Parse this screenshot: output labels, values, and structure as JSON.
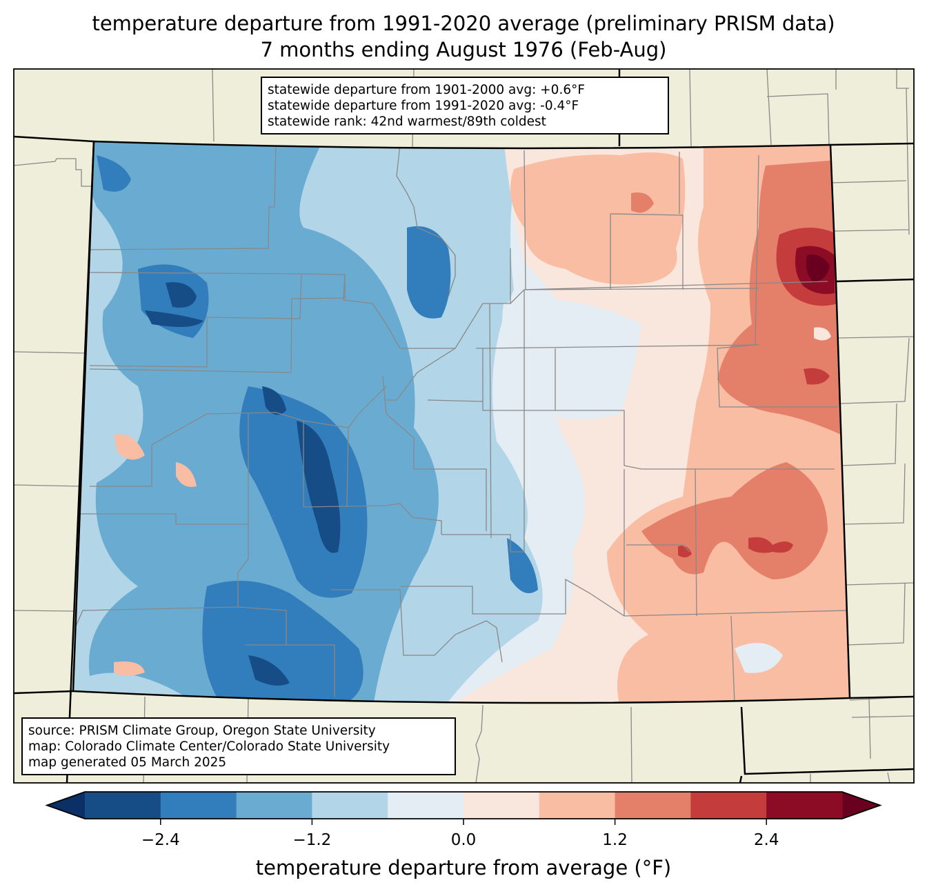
{
  "title": {
    "line1": "temperature departure from 1991-2020 average (preliminary PRISM data)",
    "line2": "7 months ending August 1976 (Feb-Aug)"
  },
  "stats_box": {
    "lines": [
      "statewide departure from 1901-2000 avg: +0.6°F",
      "statewide departure from 1991-2020 avg: -0.4°F",
      "statewide rank: 42nd warmest/89th coldest"
    ]
  },
  "credits_box": {
    "lines": [
      "source: PRISM Climate Group, Oregon State University",
      "map: Colorado Climate Center/Colorado State University",
      "map generated 05 March 2025"
    ]
  },
  "colorbar": {
    "label": "temperature departure from average (°F)",
    "levels": [
      -3.0,
      -2.4,
      -1.8,
      -1.2,
      -0.6,
      0.0,
      0.6,
      1.2,
      1.8,
      2.4,
      3.0
    ],
    "colors": [
      "#164d87",
      "#327dbc",
      "#6aacd1",
      "#b2d5e7",
      "#e5edf4",
      "#f9e7de",
      "#f8bda3",
      "#e4806a",
      "#c43c3c",
      "#8c0c25"
    ],
    "under_color": "#0a3065",
    "over_color": "#6a0020",
    "ticks": [
      {
        "value": -2.4,
        "label": "−2.4"
      },
      {
        "value": -1.2,
        "label": "−1.2"
      },
      {
        "value": 0.0,
        "label": "0.0"
      },
      {
        "value": 1.2,
        "label": "1.2"
      },
      {
        "value": 2.4,
        "label": "2.4"
      }
    ]
  },
  "map": {
    "background_color": "#efeedb",
    "state": "Colorado",
    "period": "Feb-Aug 1976",
    "pattern_summary": "cooler than average across the western mountains, warmer than average across the eastern plains",
    "region_values": [
      {
        "region": "northwest-base",
        "value": -1.5
      },
      {
        "region": "northwest-cold-core",
        "value": -2.1
      },
      {
        "region": "northwest-coldest-core",
        "value": -2.7
      },
      {
        "region": "central-mountains-cold",
        "value": -2.1
      },
      {
        "region": "central-mountains-coldest",
        "value": -2.7
      },
      {
        "region": "san-juans-cold",
        "value": -2.1
      },
      {
        "region": "san-juans-coldest",
        "value": -2.7
      },
      {
        "region": "front-range-near-normal",
        "value": -0.3
      },
      {
        "region": "west-slope-warm-spot",
        "value": 0.9
      },
      {
        "region": "northeast-plains-warm",
        "value": 0.9
      },
      {
        "region": "east-plains-warmer",
        "value": 1.5
      },
      {
        "region": "northeast-hot-core",
        "value": 2.1
      },
      {
        "region": "northeast-hottest-core",
        "value": 2.7
      },
      {
        "region": "southeast-warm",
        "value": 1.5
      },
      {
        "region": "southeast-hot-spots",
        "value": 2.1
      },
      {
        "region": "southeast-plains-near-normal",
        "value": 0.3
      }
    ]
  }
}
